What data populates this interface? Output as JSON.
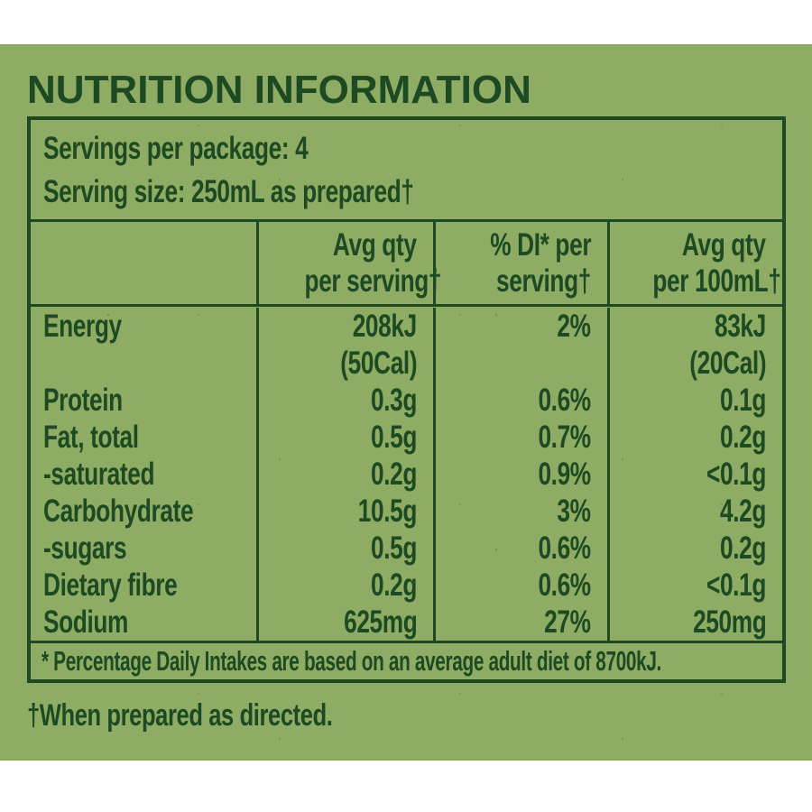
{
  "colors": {
    "page_background": "#ffffff",
    "panel_green": "#8eac63",
    "ink_green": "#1d4a22"
  },
  "panel": {
    "title": "NUTRITION INFORMATION",
    "serving_info": {
      "servings_per_package": "Servings per package: 4",
      "serving_size": "Serving size: 250mL as prepared†"
    },
    "columns": [
      {
        "line1": "",
        "line2": ""
      },
      {
        "line1": "Avg qty",
        "line2": "per serving†"
      },
      {
        "line1": "% DI* per",
        "line2": "serving†"
      },
      {
        "line1": "Avg qty",
        "line2": "per 100mL†"
      }
    ],
    "rows": [
      {
        "name": "Energy",
        "per_serving": "208kJ",
        "per_serving_sub": "(50Cal)",
        "di_per_serving": "2%",
        "di_sub": "",
        "per_100ml": "83kJ",
        "per_100ml_sub": "(20Cal)"
      },
      {
        "name": "Protein",
        "per_serving": "0.3g",
        "di_per_serving": "0.6%",
        "per_100ml": "0.1g"
      },
      {
        "name": "Fat, total",
        "per_serving": "0.5g",
        "di_per_serving": "0.7%",
        "per_100ml": "0.2g"
      },
      {
        "name": "-saturated",
        "per_serving": "0.2g",
        "di_per_serving": "0.9%",
        "per_100ml": "<0.1g"
      },
      {
        "name": "Carbohydrate",
        "per_serving": "10.5g",
        "di_per_serving": "3%",
        "per_100ml": "4.2g"
      },
      {
        "name": "-sugars",
        "per_serving": "0.5g",
        "di_per_serving": "0.6%",
        "per_100ml": "0.2g"
      },
      {
        "name": "Dietary fibre",
        "per_serving": "0.2g",
        "di_per_serving": "0.6%",
        "per_100ml": "<0.1g"
      },
      {
        "name": "Sodium",
        "per_serving": "625mg",
        "di_per_serving": "27%",
        "per_100ml": "250mg"
      }
    ],
    "footnotes": {
      "daily_intake": "* Percentage Daily Intakes are based on an average adult diet of 8700kJ.",
      "prepared": "†When prepared as directed."
    }
  }
}
